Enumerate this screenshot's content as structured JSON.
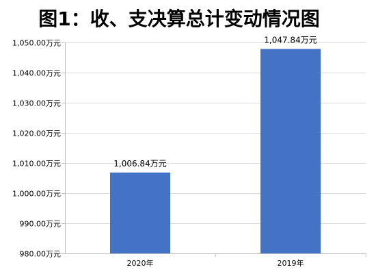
{
  "chart_data": {
    "type": "bar",
    "title": "图1：收、支决算总计变动情况图",
    "categories": [
      "2020年",
      "2019年"
    ],
    "values": [
      1006.84,
      1047.84
    ],
    "data_labels": [
      "1,006.84万元",
      "1,047.84万元"
    ],
    "y_tick_labels": [
      "980.00万元",
      "990.00万元",
      "1,000.00万元",
      "1,010.00万元",
      "1,020.00万元",
      "1,030.00万元",
      "1,040.00万元",
      "1,050.00万元"
    ],
    "ylim": [
      980,
      1050
    ],
    "y_tick_step": 10,
    "grid": true,
    "legend": "none",
    "xlabel": "",
    "ylabel": "",
    "bar_color": "#4472C4",
    "grid_color": "#D9D9D9",
    "axis_color": "#BFBFBF"
  }
}
